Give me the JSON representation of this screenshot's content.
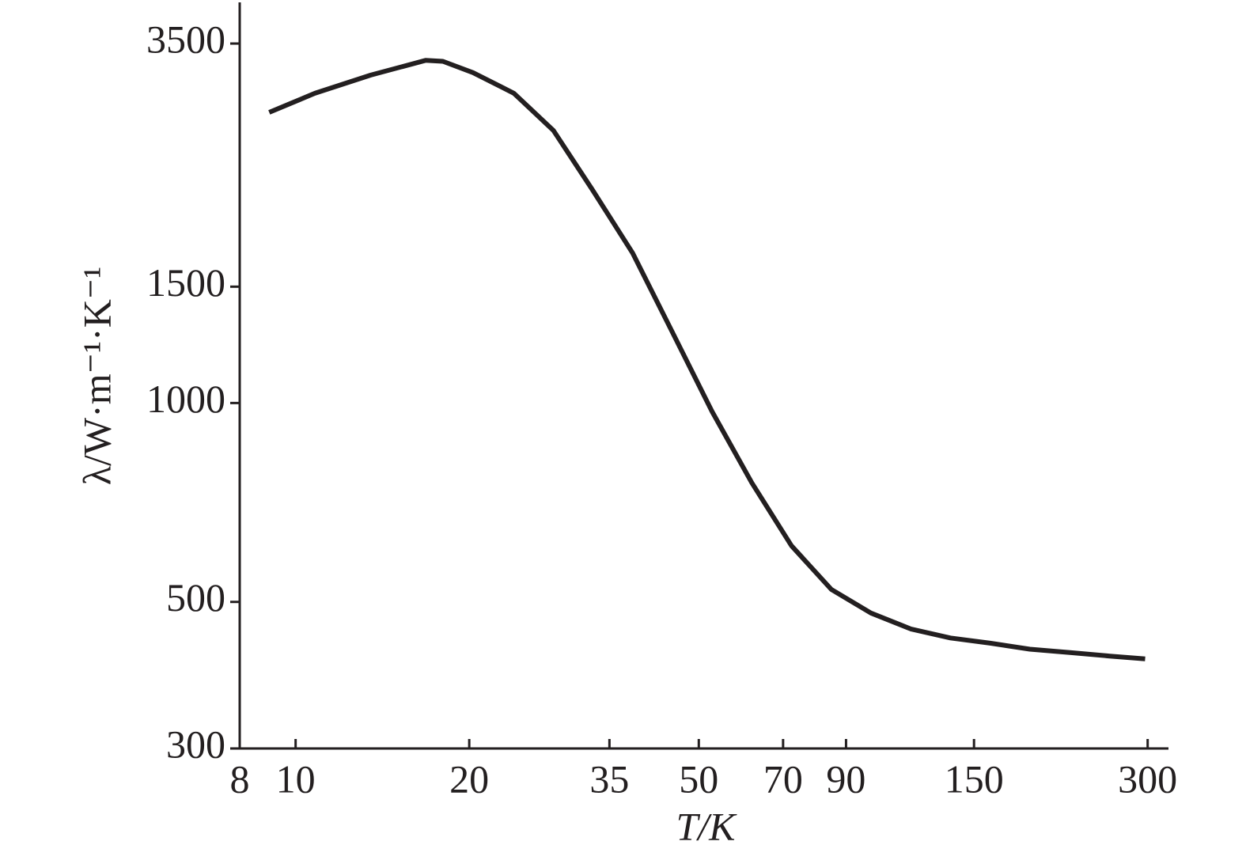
{
  "chart_data": {
    "type": "line",
    "x_label": "T/K",
    "y_label": "λ/W·m⁻¹·K⁻¹",
    "x_log": true,
    "y_log": true,
    "xlim": [
      8,
      326
    ],
    "ylim": [
      300,
      4040
    ],
    "xticks": [
      8,
      10,
      20,
      35,
      50,
      70,
      90,
      150,
      300
    ],
    "yticks": [
      300,
      500,
      1000,
      1500,
      3500
    ],
    "series": [
      {
        "color": "#231f20",
        "x": [
          9.0,
          10.8,
          13.5,
          16.8,
          18.0,
          20.3,
          23.9,
          28.0,
          32.7,
          38.4,
          45.0,
          52.7,
          61.8,
          72.4,
          84.9,
          99.4,
          116.5,
          136.5,
          160,
          187.5,
          220,
          258,
          297
        ],
        "values": [
          2754,
          2943,
          3136,
          3301,
          3290,
          3163,
          2943,
          2584,
          2103,
          1686,
          1280,
          971,
          757,
          608,
          522,
          481,
          455,
          441,
          433,
          424,
          419,
          414,
          410
        ]
      }
    ]
  }
}
